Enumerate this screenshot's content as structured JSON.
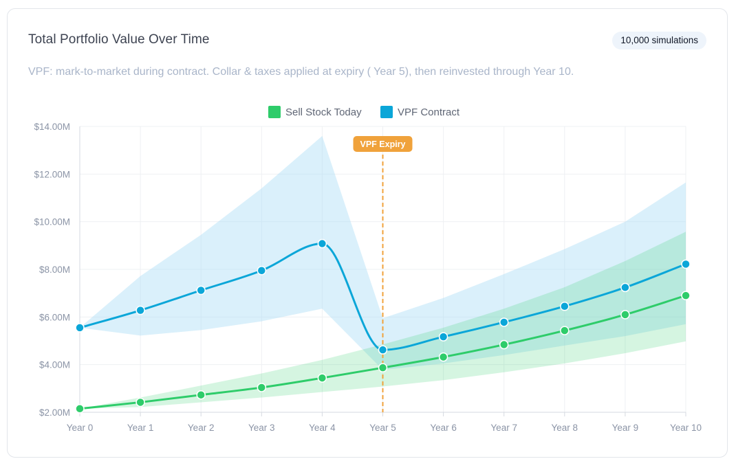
{
  "header": {
    "title": "Total Portfolio Value Over Time",
    "badge": "10,000 simulations",
    "subtitle": "VPF: mark-to-market during contract. Collar & taxes applied at expiry ( Year 5), then reinvested through Year 10."
  },
  "chart_data": {
    "type": "line",
    "categories": [
      "Year 0",
      "Year 1",
      "Year 2",
      "Year 3",
      "Year 4",
      "Year 5",
      "Year 6",
      "Year 7",
      "Year 8",
      "Year 9",
      "Year 10"
    ],
    "y_ticks": [
      2,
      4,
      6,
      8,
      10,
      12,
      14
    ],
    "y_tick_labels": [
      "$2.00M",
      "$4.00M",
      "$6.00M",
      "$8.00M",
      "$10.00M",
      "$12.00M",
      "$14.00M"
    ],
    "ylim": [
      2,
      14
    ],
    "legend_position": "top-center",
    "series": [
      {
        "name": "Sell Stock Today",
        "color": "#2ecc6a",
        "band_color": "#2ecc6a",
        "values": [
          2.15,
          2.42,
          2.73,
          3.04,
          3.44,
          3.87,
          4.32,
          4.84,
          5.43,
          6.1,
          6.9
        ],
        "upper": [
          2.15,
          2.62,
          3.12,
          3.63,
          4.2,
          4.85,
          5.55,
          6.35,
          7.25,
          8.35,
          9.58
        ],
        "lower": [
          2.15,
          2.22,
          2.42,
          2.62,
          2.85,
          3.08,
          3.35,
          3.68,
          4.05,
          4.48,
          4.98
        ]
      },
      {
        "name": "VPF Contract",
        "color": "#0ba6d8",
        "band_color": "#a8dcf6",
        "values": [
          5.55,
          6.28,
          7.12,
          7.95,
          9.08,
          4.62,
          5.17,
          5.78,
          6.45,
          7.24,
          8.22
        ],
        "upper": [
          5.55,
          7.72,
          9.45,
          11.4,
          13.6,
          5.95,
          6.8,
          7.8,
          8.85,
          10.0,
          11.65
        ],
        "lower": [
          5.55,
          5.22,
          5.45,
          5.82,
          6.35,
          3.78,
          4.05,
          4.4,
          4.8,
          5.2,
          5.7
        ]
      }
    ],
    "annotation": {
      "label": "VPF Expiry",
      "at": "Year 5",
      "color": "#f0a23b"
    }
  }
}
